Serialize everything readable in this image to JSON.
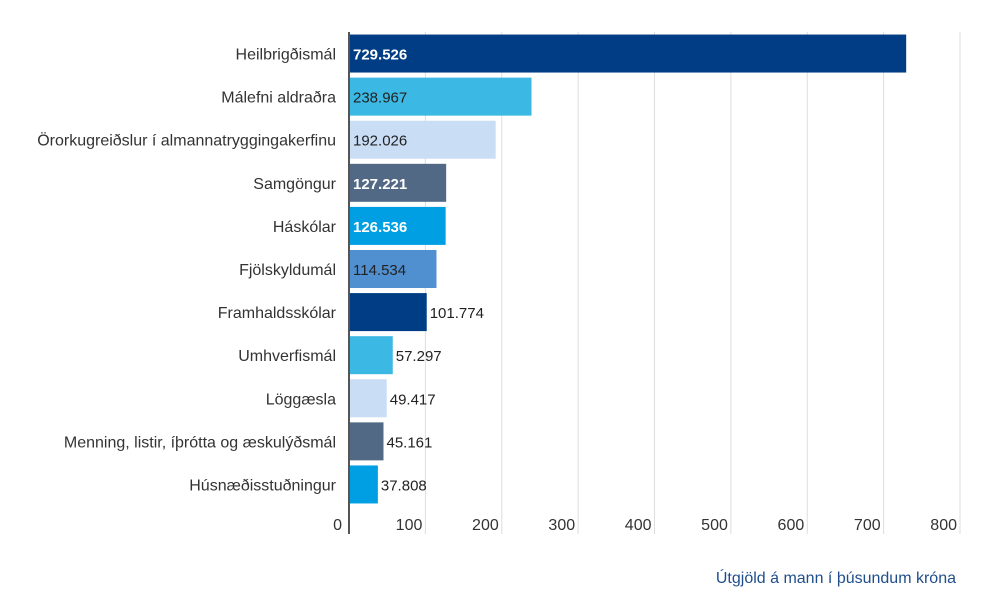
{
  "chart_data": {
    "type": "bar",
    "orientation": "horizontal",
    "categories": [
      "Heilbrigðismál",
      "Málefni aldraðra",
      "Örorkugreiðslur í almannatryggingakerfinu",
      "Samgöngur",
      "Háskólar",
      "Fjölskyldumál",
      "Framhaldsskólar",
      "Umhverfismál",
      "Löggæsla",
      "Menning, listir, íþrótta og æskulýðsmál",
      "Húsnæðisstuðningur"
    ],
    "values": [
      729.526,
      238.967,
      192.026,
      127.221,
      126.536,
      114.534,
      101.774,
      57.297,
      49.417,
      45.161,
      37.808
    ],
    "value_labels": [
      "729.526",
      "238.967",
      "192.026",
      "127.221",
      "126.536",
      "114.534",
      "101.774",
      "57.297",
      "49.417",
      "45.161",
      "37.808"
    ],
    "colors": [
      "#003d85",
      "#3bb8e3",
      "#c9ddf5",
      "#526985",
      "#009fe3",
      "#5090d0",
      "#003d85",
      "#3bb8e3",
      "#c9ddf5",
      "#526985",
      "#009fe3"
    ],
    "label_colors": [
      "#ffffff",
      "#222222",
      "#222222",
      "#ffffff",
      "#ffffff",
      "#222222",
      "#ffffff",
      "#222222",
      "#222222",
      "#222222",
      "#222222"
    ],
    "xlim": [
      0,
      800
    ],
    "xticks": [
      0,
      100,
      200,
      300,
      400,
      500,
      600,
      700,
      800
    ],
    "grid": true,
    "xlabel": "Útgjöld á mann í þúsundum króna"
  }
}
